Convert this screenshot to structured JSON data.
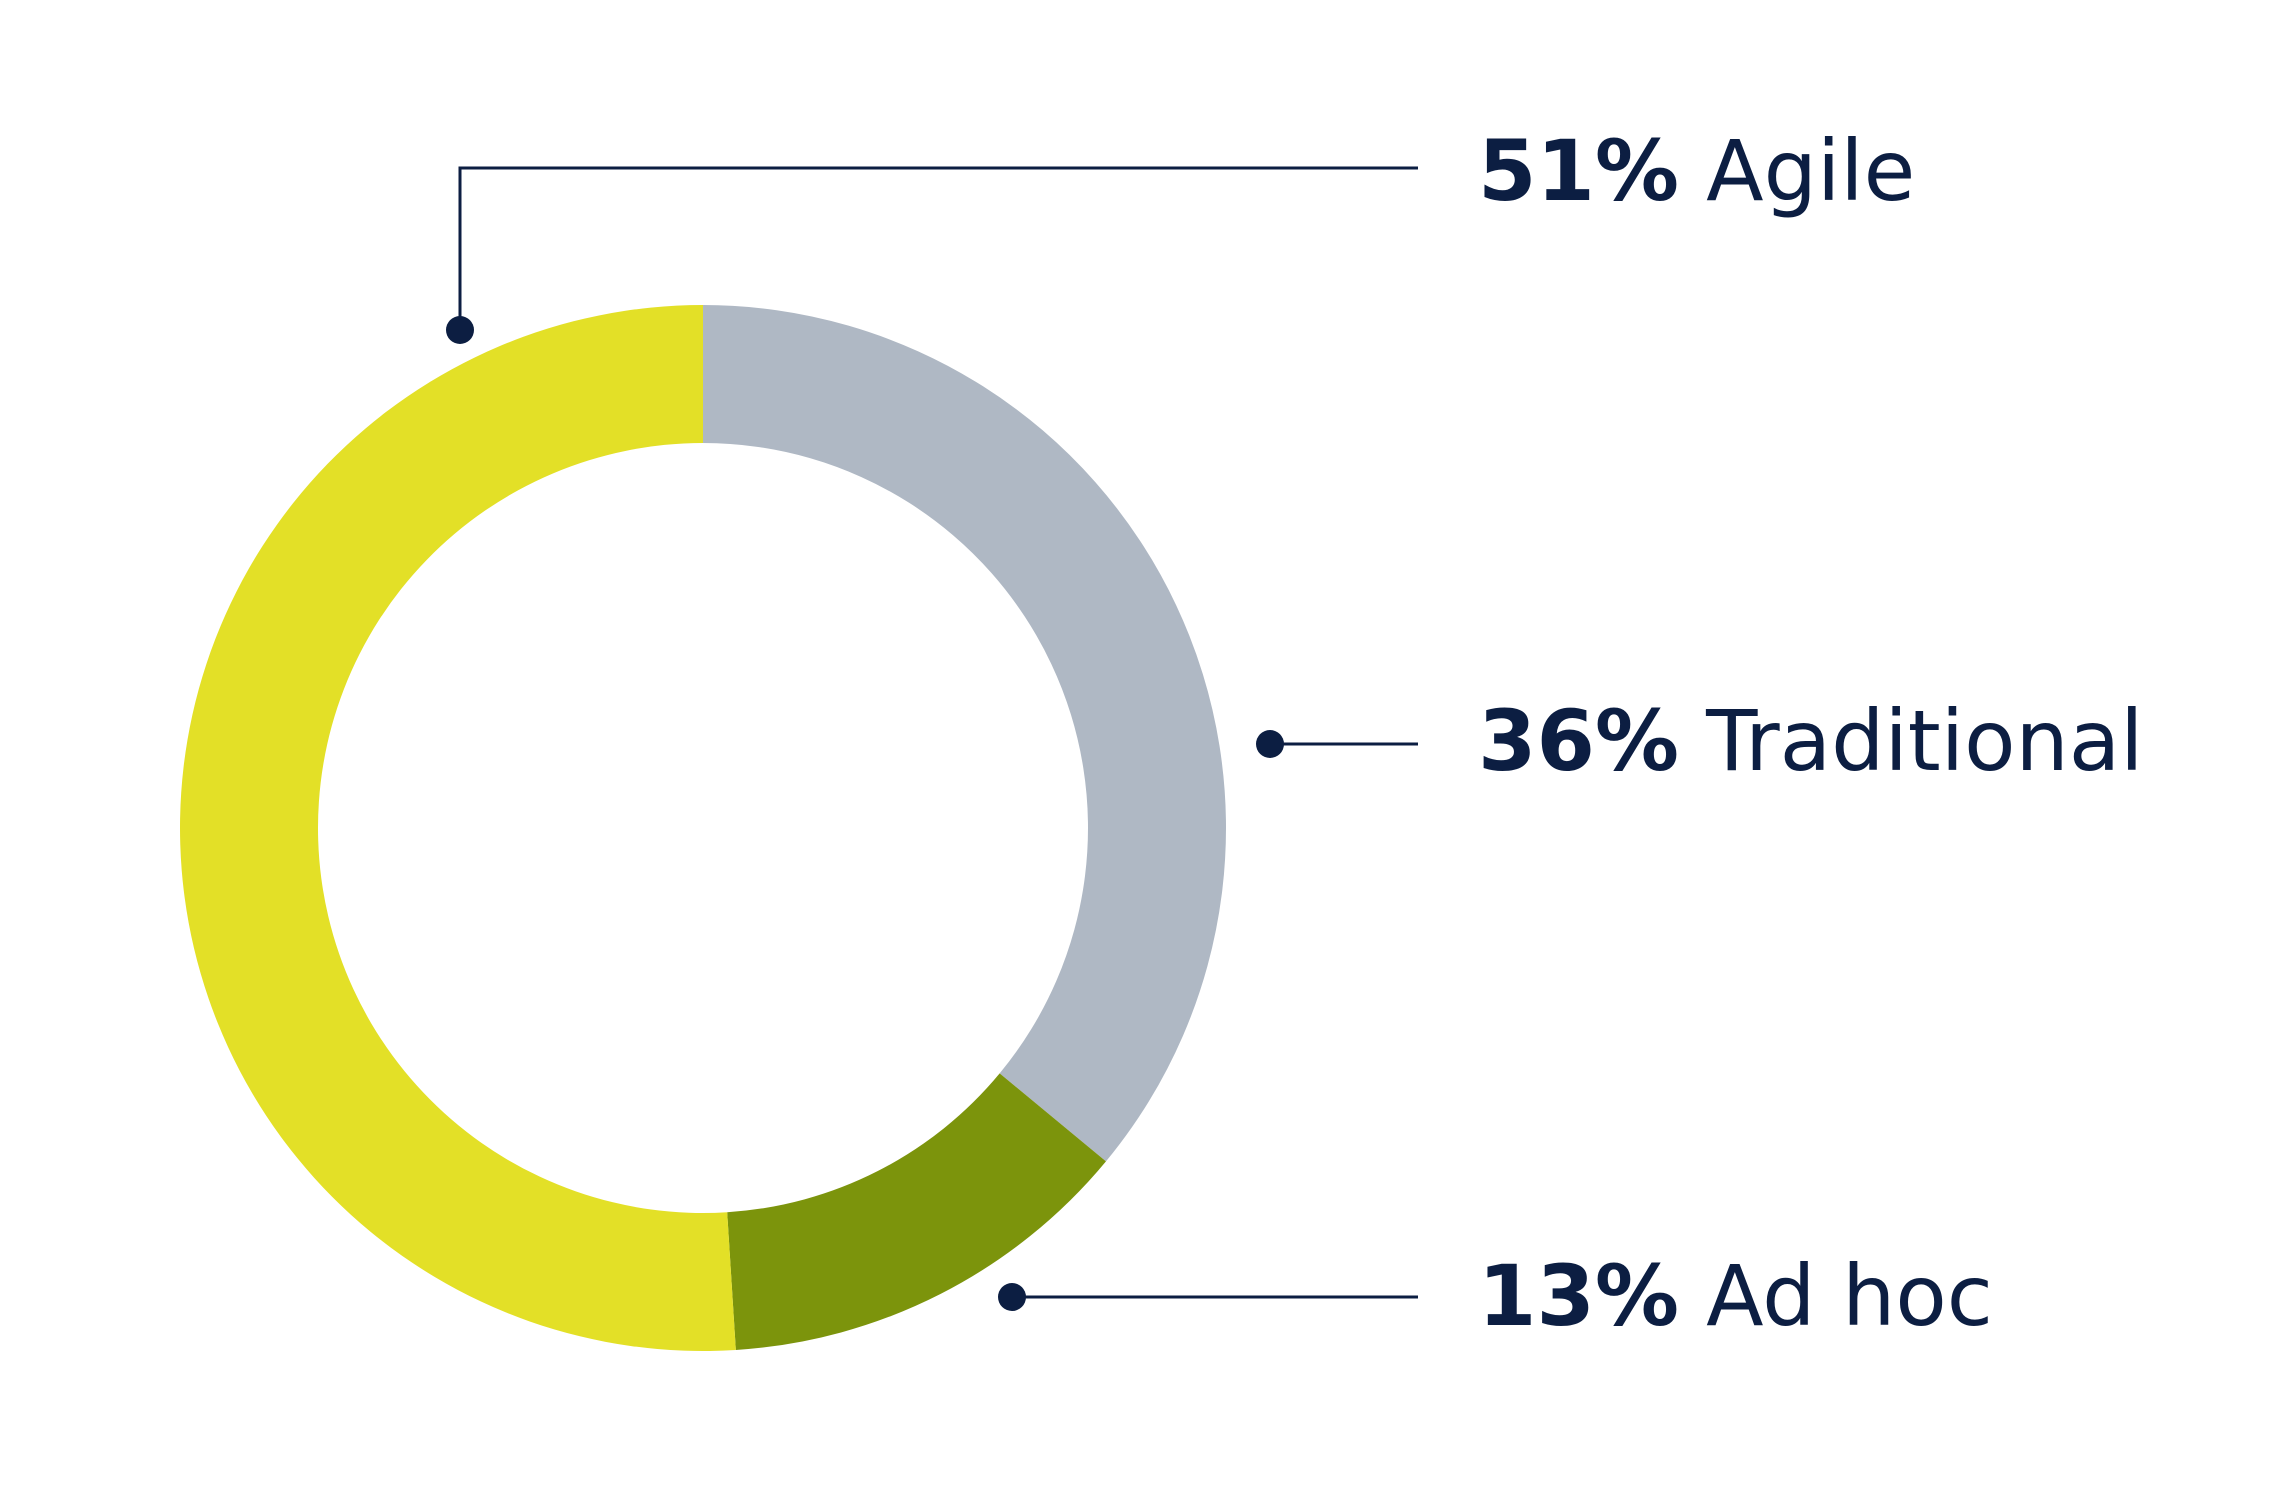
{
  "chart_data": {
    "type": "pie",
    "variant": "donut",
    "title": "",
    "start": "12 o'clock",
    "direction": "clockwise",
    "label_color": "#0c1e42",
    "series": [
      {
        "name": "Traditional",
        "value": 36,
        "value_label": "36%",
        "color": "#afb8c4"
      },
      {
        "name": "Ad hoc",
        "value": 13,
        "value_label": "13%",
        "color": "#7c940c"
      },
      {
        "name": "Agile",
        "value": 51,
        "value_label": "51%",
        "color": "#e3e027"
      }
    ]
  }
}
